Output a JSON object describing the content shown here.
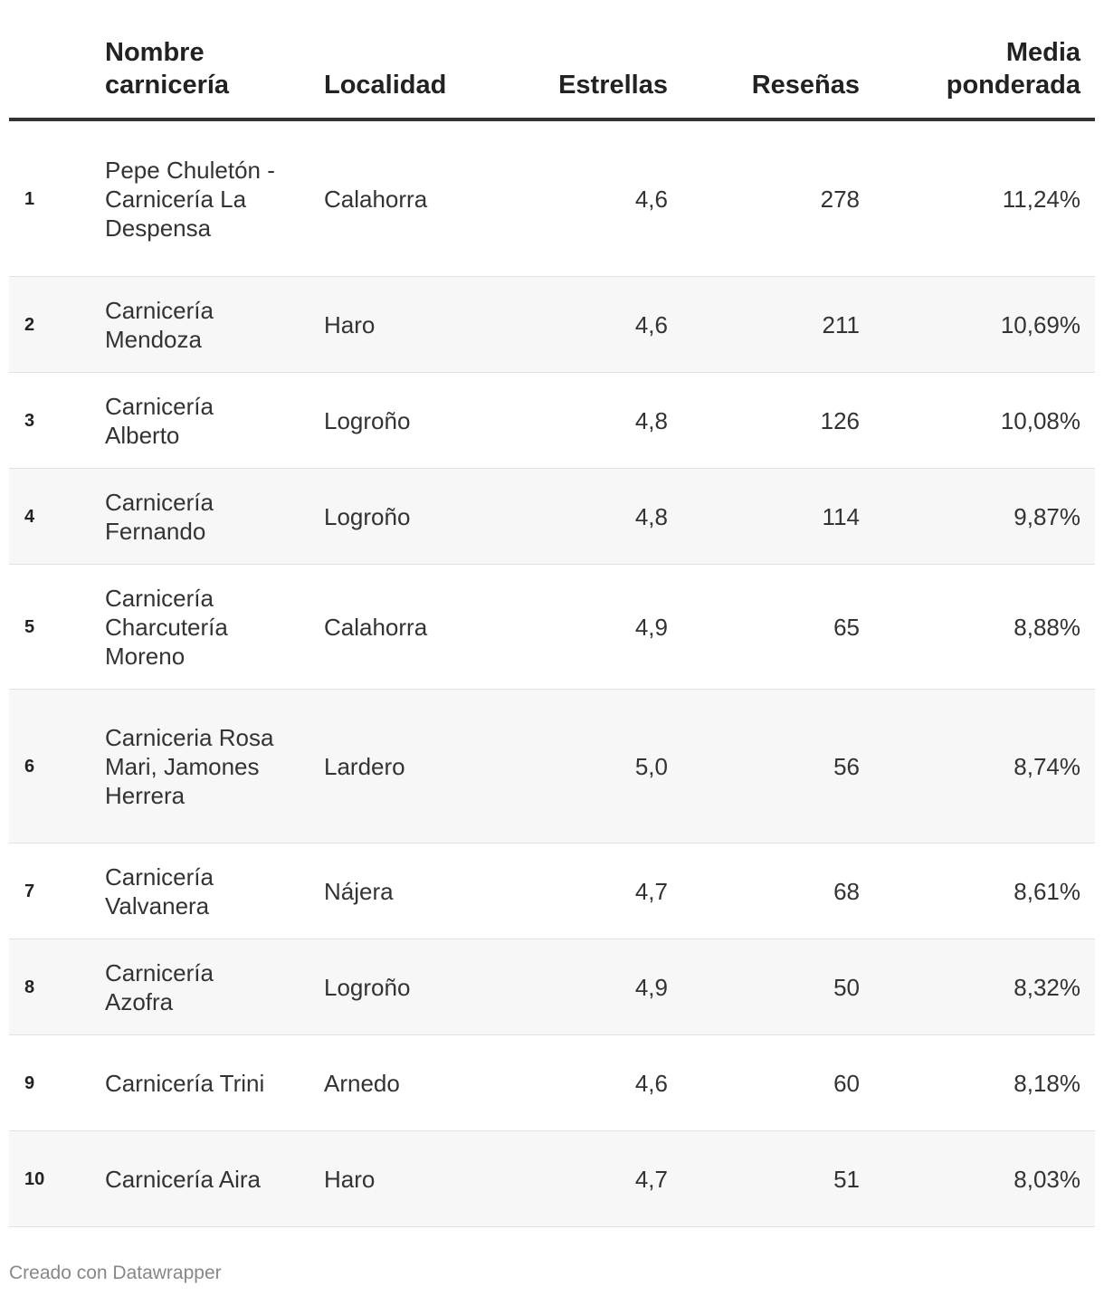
{
  "chart_data": {
    "type": "table",
    "columns": [
      "",
      "Nombre carnicería",
      "Localidad",
      "Estrellas",
      "Reseñas",
      "Media ponderada"
    ],
    "rows": [
      {
        "rank": "1",
        "name": "Pepe Chuletón - Carnicería La Despensa",
        "locality": "Calahorra",
        "stars": "4,6",
        "reviews": "278",
        "weighted": "11,24%"
      },
      {
        "rank": "2",
        "name": "Carnicería Mendoza",
        "locality": "Haro",
        "stars": "4,6",
        "reviews": "211",
        "weighted": "10,69%"
      },
      {
        "rank": "3",
        "name": "Carnicería Alberto",
        "locality": "Logroño",
        "stars": "4,8",
        "reviews": "126",
        "weighted": "10,08%"
      },
      {
        "rank": "4",
        "name": "Carnicería Fernando",
        "locality": "Logroño",
        "stars": "4,8",
        "reviews": "114",
        "weighted": "9,87%"
      },
      {
        "rank": "5",
        "name": "Carnicería Charcutería Moreno",
        "locality": "Calahorra",
        "stars": "4,9",
        "reviews": "65",
        "weighted": "8,88%"
      },
      {
        "rank": "6",
        "name": "Carniceria Rosa Mari, Jamones Herrera",
        "locality": "Lardero",
        "stars": "5,0",
        "reviews": "56",
        "weighted": "8,74%"
      },
      {
        "rank": "7",
        "name": "Carnicería Valvanera",
        "locality": "Nájera",
        "stars": "4,7",
        "reviews": "68",
        "weighted": "8,61%"
      },
      {
        "rank": "8",
        "name": "Carnicería Azofra",
        "locality": "Logroño",
        "stars": "4,9",
        "reviews": "50",
        "weighted": "8,32%"
      },
      {
        "rank": "9",
        "name": "Carnicería Trini",
        "locality": "Arnedo",
        "stars": "4,6",
        "reviews": "60",
        "weighted": "8,18%"
      },
      {
        "rank": "10",
        "name": "Carnicería Aira",
        "locality": "Haro",
        "stars": "4,7",
        "reviews": "51",
        "weighted": "8,03%"
      }
    ]
  },
  "header": {
    "name_line1": "Nombre",
    "name_line2": "carnicería",
    "locality": "Localidad",
    "stars": "Estrellas",
    "reviews": "Reseñas",
    "weighted_line1": "Media",
    "weighted_line2": "ponderada"
  },
  "footer": {
    "credit": "Creado con Datawrapper"
  },
  "colors": {
    "header_rule": "#333333",
    "alt_row": "#f7f7f7",
    "text": "#333333",
    "footer_text": "#888888"
  }
}
